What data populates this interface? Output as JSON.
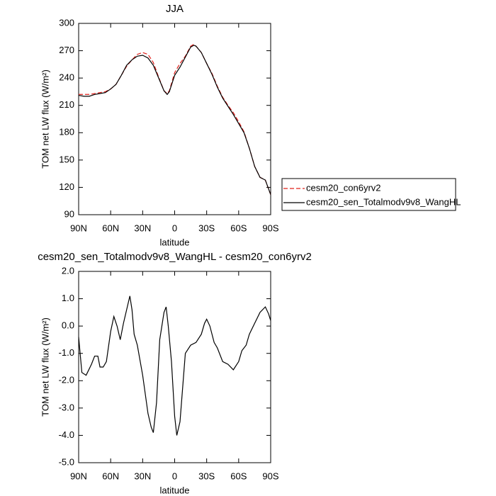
{
  "chart_data": [
    {
      "type": "line",
      "title": "JJA",
      "x_label": "latitude",
      "y_label": "TOM net LW flux (W/m²)",
      "x": [
        90,
        85,
        80,
        75,
        70,
        65,
        60,
        55,
        50,
        45,
        40,
        35,
        30,
        25,
        20,
        15,
        10,
        7,
        5,
        0,
        -5,
        -10,
        -15,
        -18,
        -20,
        -25,
        -30,
        -35,
        -40,
        -45,
        -50,
        -55,
        -60,
        -65,
        -70,
        -75,
        -80,
        -85,
        -90
      ],
      "series": [
        {
          "name": "cesm20_con6yrv2",
          "color": "#e0201b",
          "dash": true,
          "values": [
            222,
            222,
            222,
            223,
            224,
            225,
            228,
            233,
            243,
            253,
            260,
            266,
            268,
            266,
            257,
            241,
            226,
            223,
            226,
            246,
            256,
            264,
            275,
            277,
            275,
            268,
            256,
            245,
            231,
            219,
            210,
            202,
            192,
            181,
            163,
            143,
            131,
            128,
            112
          ]
        },
        {
          "name": "cesm20_sen_Totalmodv9v8_WangHL",
          "color": "#000000",
          "dash": false,
          "values": [
            221,
            220,
            220,
            222,
            223,
            224,
            228,
            233,
            243,
            254,
            260,
            264,
            265,
            262,
            254,
            240,
            226,
            222,
            225,
            243,
            252,
            263,
            274,
            276,
            275,
            268,
            256,
            244,
            230,
            218,
            209,
            200,
            190,
            180,
            163,
            143,
            131,
            128,
            112
          ]
        }
      ],
      "xlim": [
        90,
        -90
      ],
      "xticks": [
        {
          "value": 90,
          "label": "90N"
        },
        {
          "value": 60,
          "label": "60N"
        },
        {
          "value": 30,
          "label": "30N"
        },
        0,
        {
          "value": -30,
          "label": "30S"
        },
        {
          "value": -60,
          "label": "60S"
        },
        {
          "value": -90,
          "label": "90S"
        }
      ],
      "ylim": [
        90,
        300
      ],
      "yticks": [
        90,
        120,
        150,
        180,
        210,
        240,
        270,
        300
      ],
      "legend": "outside-right"
    },
    {
      "type": "line",
      "title": "cesm20_sen_Totalmodv9v8_WangHL - cesm20_con6yrv2",
      "x_label": "latitude",
      "y_label": "TOM net LW flux (W/m²)",
      "x": [
        90,
        87,
        83,
        78,
        75,
        72,
        70,
        67,
        64,
        60,
        57,
        54,
        51,
        48,
        45,
        42,
        40,
        38,
        35,
        30,
        25,
        22,
        20,
        17,
        14,
        10,
        8,
        6,
        3,
        0,
        -2,
        -5,
        -8,
        -10,
        -15,
        -20,
        -25,
        -28,
        -30,
        -33,
        -37,
        -40,
        -45,
        -50,
        -55,
        -60,
        -63,
        -67,
        -70,
        -75,
        -80,
        -85,
        -88,
        -90
      ],
      "color": "#000000",
      "values": [
        -0.4,
        -1.7,
        -1.8,
        -1.4,
        -1.1,
        -1.1,
        -1.5,
        -1.5,
        -1.3,
        -0.2,
        0.35,
        0.0,
        -0.5,
        0.1,
        0.6,
        1.1,
        0.6,
        -0.3,
        -0.7,
        -1.8,
        -3.2,
        -3.7,
        -3.9,
        -2.8,
        -0.5,
        0.5,
        0.7,
        0.0,
        -1.3,
        -3.3,
        -4.0,
        -3.5,
        -2.0,
        -1.0,
        -0.7,
        -0.6,
        -0.3,
        0.1,
        0.25,
        0.0,
        -0.6,
        -0.8,
        -1.3,
        -1.4,
        -1.6,
        -1.3,
        -0.9,
        -0.7,
        -0.3,
        0.1,
        0.5,
        0.7,
        0.45,
        0.2
      ],
      "xlim": [
        90,
        -90
      ],
      "xticks": [
        {
          "value": 90,
          "label": "90N"
        },
        {
          "value": 60,
          "label": "60N"
        },
        {
          "value": 30,
          "label": "30N"
        },
        0,
        {
          "value": -30,
          "label": "30S"
        },
        {
          "value": -60,
          "label": "60S"
        },
        {
          "value": -90,
          "label": "90S"
        }
      ],
      "ylim": [
        -5,
        2
      ],
      "yticks": [
        {
          "value": -5,
          "label": "-5.0"
        },
        {
          "value": -4,
          "label": "-4.0"
        },
        {
          "value": -3,
          "label": "-3.0"
        },
        {
          "value": -2,
          "label": "-2.0"
        },
        {
          "value": -1,
          "label": "-1.0"
        },
        {
          "value": 0,
          "label": "0.0"
        },
        {
          "value": 1,
          "label": "1.0"
        },
        {
          "value": 2,
          "label": "2.0"
        }
      ]
    }
  ]
}
